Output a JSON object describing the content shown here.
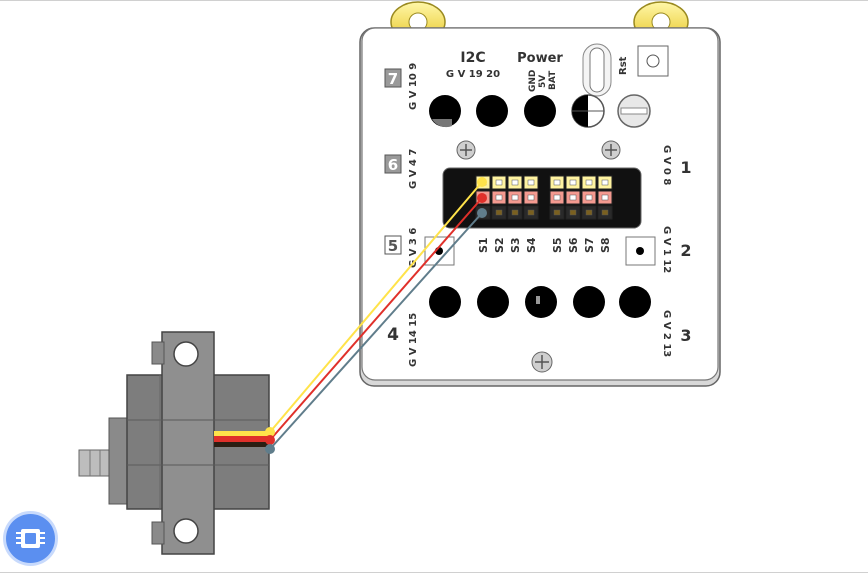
{
  "board": {
    "port7": "7",
    "port7_pins": "G V 10 9",
    "i2c_label": "I2C",
    "i2c_pins": "G V 19 20",
    "power_label": "Power",
    "power_gnd": "GND",
    "power_5v": "5V",
    "power_bat": "BAT",
    "rst_label": "Rst",
    "port6": "6",
    "port6_pins": "G V 4 7",
    "port1": "1",
    "port1_pins": "G V 0 8",
    "port5": "5",
    "port5_pins": "G V 3 6",
    "port2": "2",
    "port2_pins": "G V 1 12",
    "port4": "4",
    "port4_pins": "G V 14 15",
    "port3": "3",
    "port3_pins": "G V 2 13",
    "servo_labels": [
      "S1",
      "S2",
      "S3",
      "S4",
      "S5",
      "S6",
      "S7",
      "S8"
    ]
  },
  "colors": {
    "board": "#ffffff",
    "board_stroke": "#666666",
    "wire_signal": "#ffe34a",
    "wire_power": "#e0302a",
    "wire_ground": "#607d8b",
    "servo_body": "#7a7a7a",
    "accent_button": "#5b8ff0"
  },
  "ui": {
    "chip_button_icon": "chip-icon"
  }
}
